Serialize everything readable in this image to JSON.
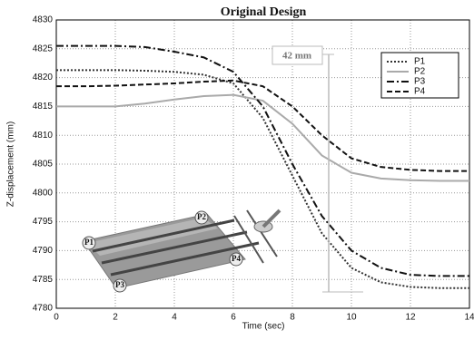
{
  "chart_data": {
    "type": "line",
    "title": "Original Design",
    "xlabel": "Time (sec)",
    "ylabel": "Z-displacement (mm)",
    "x": [
      0,
      1,
      2,
      3,
      4,
      5,
      6,
      7,
      8,
      9,
      10,
      11,
      12,
      13,
      14
    ],
    "series": [
      {
        "name": "P1",
        "color": "#333333",
        "line_style": "dotted",
        "values": [
          4821.3,
          4821.3,
          4821.3,
          4821.2,
          4821,
          4820.5,
          4819,
          4813,
          4803,
          4793,
          4787,
          4784.5,
          4783.7,
          4783.5,
          4783.5
        ]
      },
      {
        "name": "P2",
        "color": "#aaaaaa",
        "line_style": "solid",
        "values": [
          4815,
          4815,
          4815,
          4815.5,
          4816.2,
          4816.8,
          4817,
          4816,
          4812,
          4806.5,
          4803.5,
          4802.5,
          4802.2,
          4802.1,
          4802.1
        ]
      },
      {
        "name": "P3",
        "color": "#111111",
        "line_style": "dashdot",
        "values": [
          4825.5,
          4825.5,
          4825.5,
          4825.3,
          4824.5,
          4823.5,
          4821,
          4815,
          4805,
          4796,
          4790,
          4787,
          4785.8,
          4785.6,
          4785.6
        ]
      },
      {
        "name": "P4",
        "color": "#111111",
        "line_style": "dashed",
        "values": [
          4818.5,
          4818.5,
          4818.6,
          4818.8,
          4819,
          4819.3,
          4819.5,
          4818.5,
          4815,
          4810,
          4806,
          4804.5,
          4804,
          4803.8,
          4803.8
        ]
      }
    ],
    "xlim": [
      0,
      14
    ],
    "xticks": [
      0,
      2,
      4,
      6,
      8,
      10,
      12,
      14
    ],
    "ylim": [
      4780,
      4830
    ],
    "yticks": [
      4780,
      4785,
      4790,
      4795,
      4800,
      4805,
      4810,
      4815,
      4820,
      4825,
      4830
    ],
    "grid": true,
    "legend": "upper right",
    "annotation": "42 mm"
  }
}
